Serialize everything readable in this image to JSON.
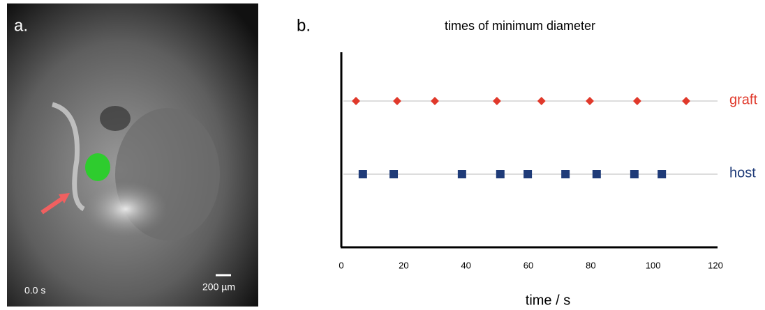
{
  "panel_a": {
    "label": "a.",
    "time": "0.0 s",
    "scale": "200 µm"
  },
  "chart_data": {
    "type": "scatter",
    "panel_label": "b.",
    "title": "times of minimum diameter",
    "x_label": "time / s",
    "series": [
      {
        "name": "graft",
        "color": "#e0392b",
        "values": [
          4.7,
          17.9,
          30.0,
          49.9,
          64.2,
          79.7,
          94.9,
          110.6
        ]
      },
      {
        "name": "host",
        "color": "#1f3b78",
        "values": [
          6.9,
          16.8,
          38.7,
          51.0,
          59.8,
          71.9,
          81.9,
          94.0,
          102.8
        ]
      }
    ],
    "xlim": [
      0,
      120
    ],
    "xticks": [
      0,
      20,
      40,
      60,
      80,
      100,
      120
    ],
    "grid": true
  }
}
